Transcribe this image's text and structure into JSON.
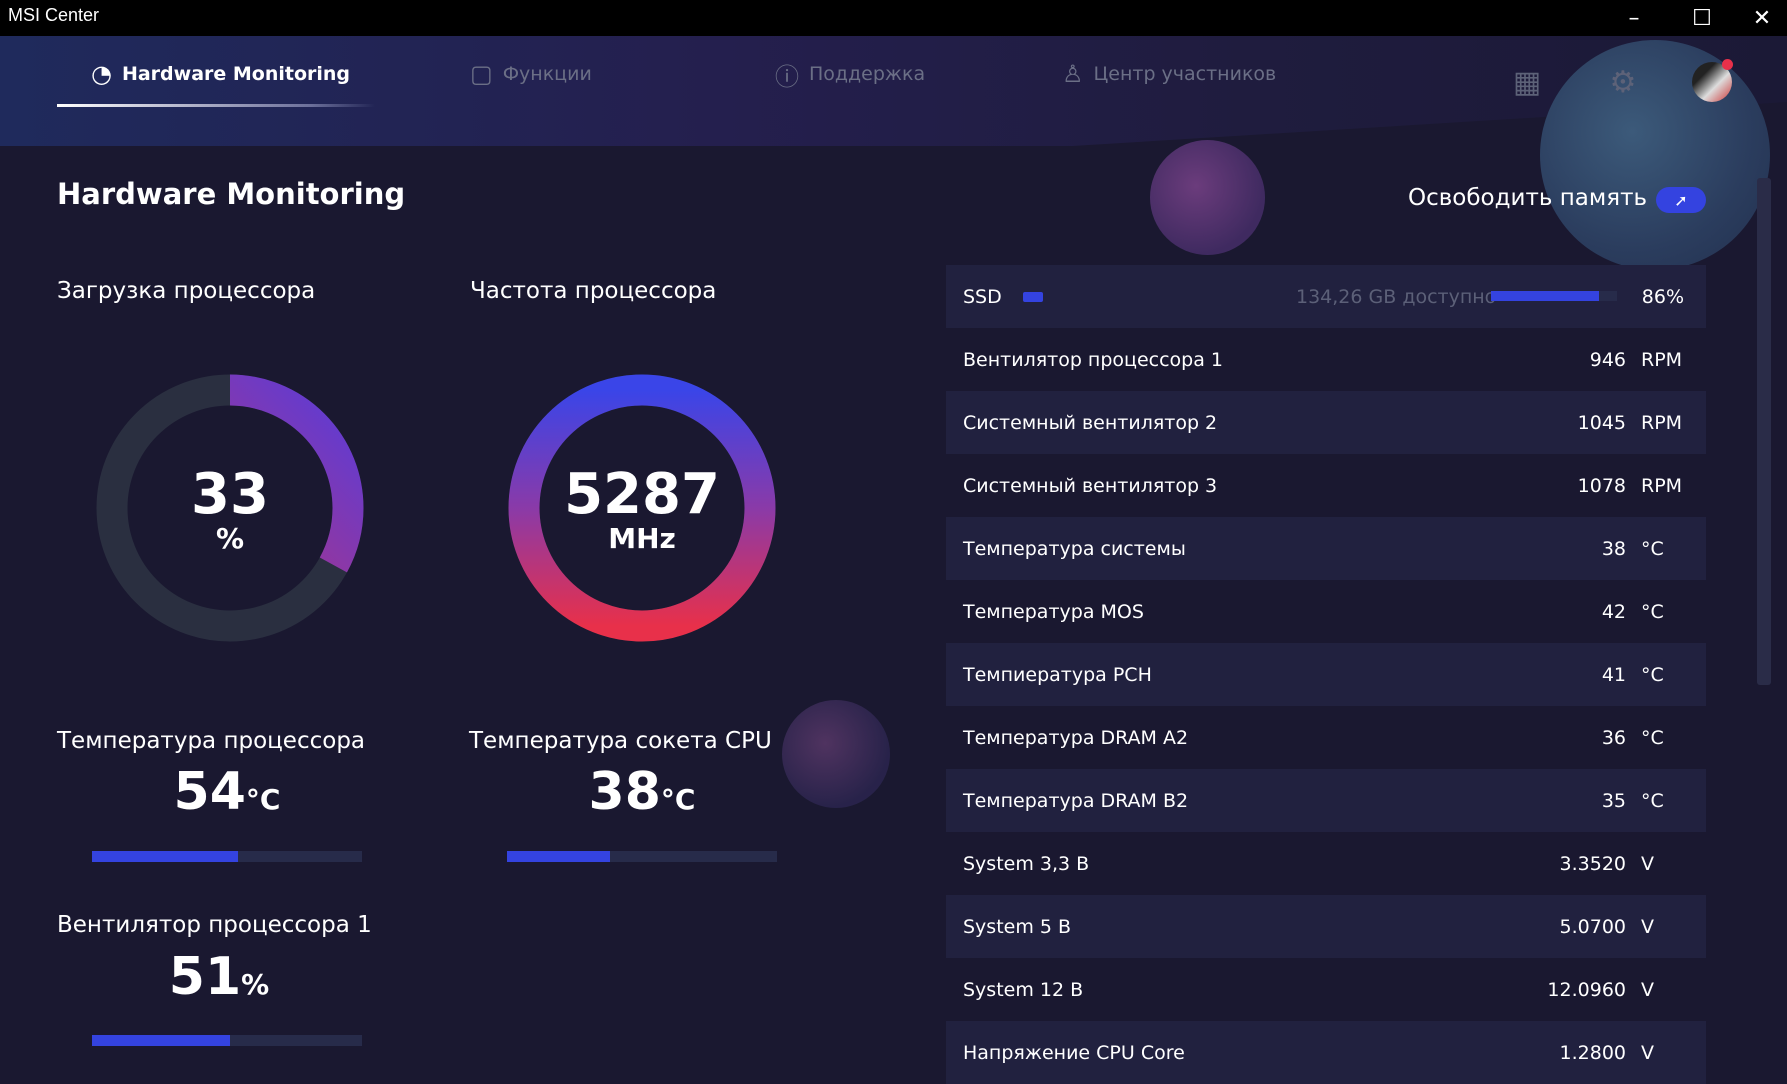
{
  "window": {
    "title": "MSI Center",
    "minimize": "–",
    "maximize": "☐",
    "close": "✕"
  },
  "nav": {
    "tabs": [
      {
        "label": "Hardware Monitoring",
        "icon": "gauge-icon",
        "active": true
      },
      {
        "label": "Функции",
        "icon": "features-icon",
        "active": false
      },
      {
        "label": "Поддержка",
        "icon": "support-icon",
        "active": false
      },
      {
        "label": "Центр участников",
        "icon": "user-icon",
        "active": false
      }
    ],
    "right_icons": [
      "grid-icon",
      "gear-icon",
      "avatar"
    ]
  },
  "page": {
    "title": "Hardware Monitoring",
    "free_memory": "Освободить память",
    "free_memory_icon": "rocket-icon"
  },
  "gauges": {
    "cpu_load": {
      "label": "Загрузка процессора",
      "value": "33",
      "unit": "%",
      "fraction": 0.33
    },
    "cpu_freq": {
      "label": "Частота процессора",
      "value": "5287",
      "unit": "MHz",
      "fraction": 1.0
    }
  },
  "stats": {
    "cpu_temp": {
      "label": "Температура процессора",
      "value": "54",
      "unit": "°C",
      "percent": 54
    },
    "socket_temp": {
      "label": "Температура сокета CPU",
      "value": "38",
      "unit": "°C",
      "percent": 38
    },
    "cpu_fan": {
      "label": "Вентилятор процессора 1",
      "value": "51",
      "unit": "%",
      "percent": 51
    }
  },
  "ssd": {
    "name": "SSD",
    "available": "134,26 GB доступно",
    "percent_label": "86%",
    "percent": 86
  },
  "sensors": [
    {
      "name": "Вентилятор процессора 1",
      "value": "946",
      "unit": "RPM"
    },
    {
      "name": "Системный вентилятор 2",
      "value": "1045",
      "unit": "RPM"
    },
    {
      "name": "Системный вентилятор 3",
      "value": "1078",
      "unit": "RPM"
    },
    {
      "name": "Температура системы",
      "value": "38",
      "unit": "°C"
    },
    {
      "name": "Температура MOS",
      "value": "42",
      "unit": "°C"
    },
    {
      "name": "Темпиература PCH",
      "value": "41",
      "unit": "°C"
    },
    {
      "name": "Температура DRAM A2",
      "value": "36",
      "unit": "°C"
    },
    {
      "name": "Температура DRAM B2",
      "value": "35",
      "unit": "°C"
    },
    {
      "name": "System 3,3 В",
      "value": "3.3520",
      "unit": "V"
    },
    {
      "name": "System 5 В",
      "value": "5.0700",
      "unit": "V"
    },
    {
      "name": "System 12 В",
      "value": "12.0960",
      "unit": "V"
    },
    {
      "name": "Напряжение CPU Core",
      "value": "1.2800",
      "unit": "V"
    }
  ],
  "colors": {
    "accent": "#3443e0",
    "gradient_start": "#e8304a",
    "gradient_end": "#3a45e8",
    "track": "#2a2f40"
  }
}
